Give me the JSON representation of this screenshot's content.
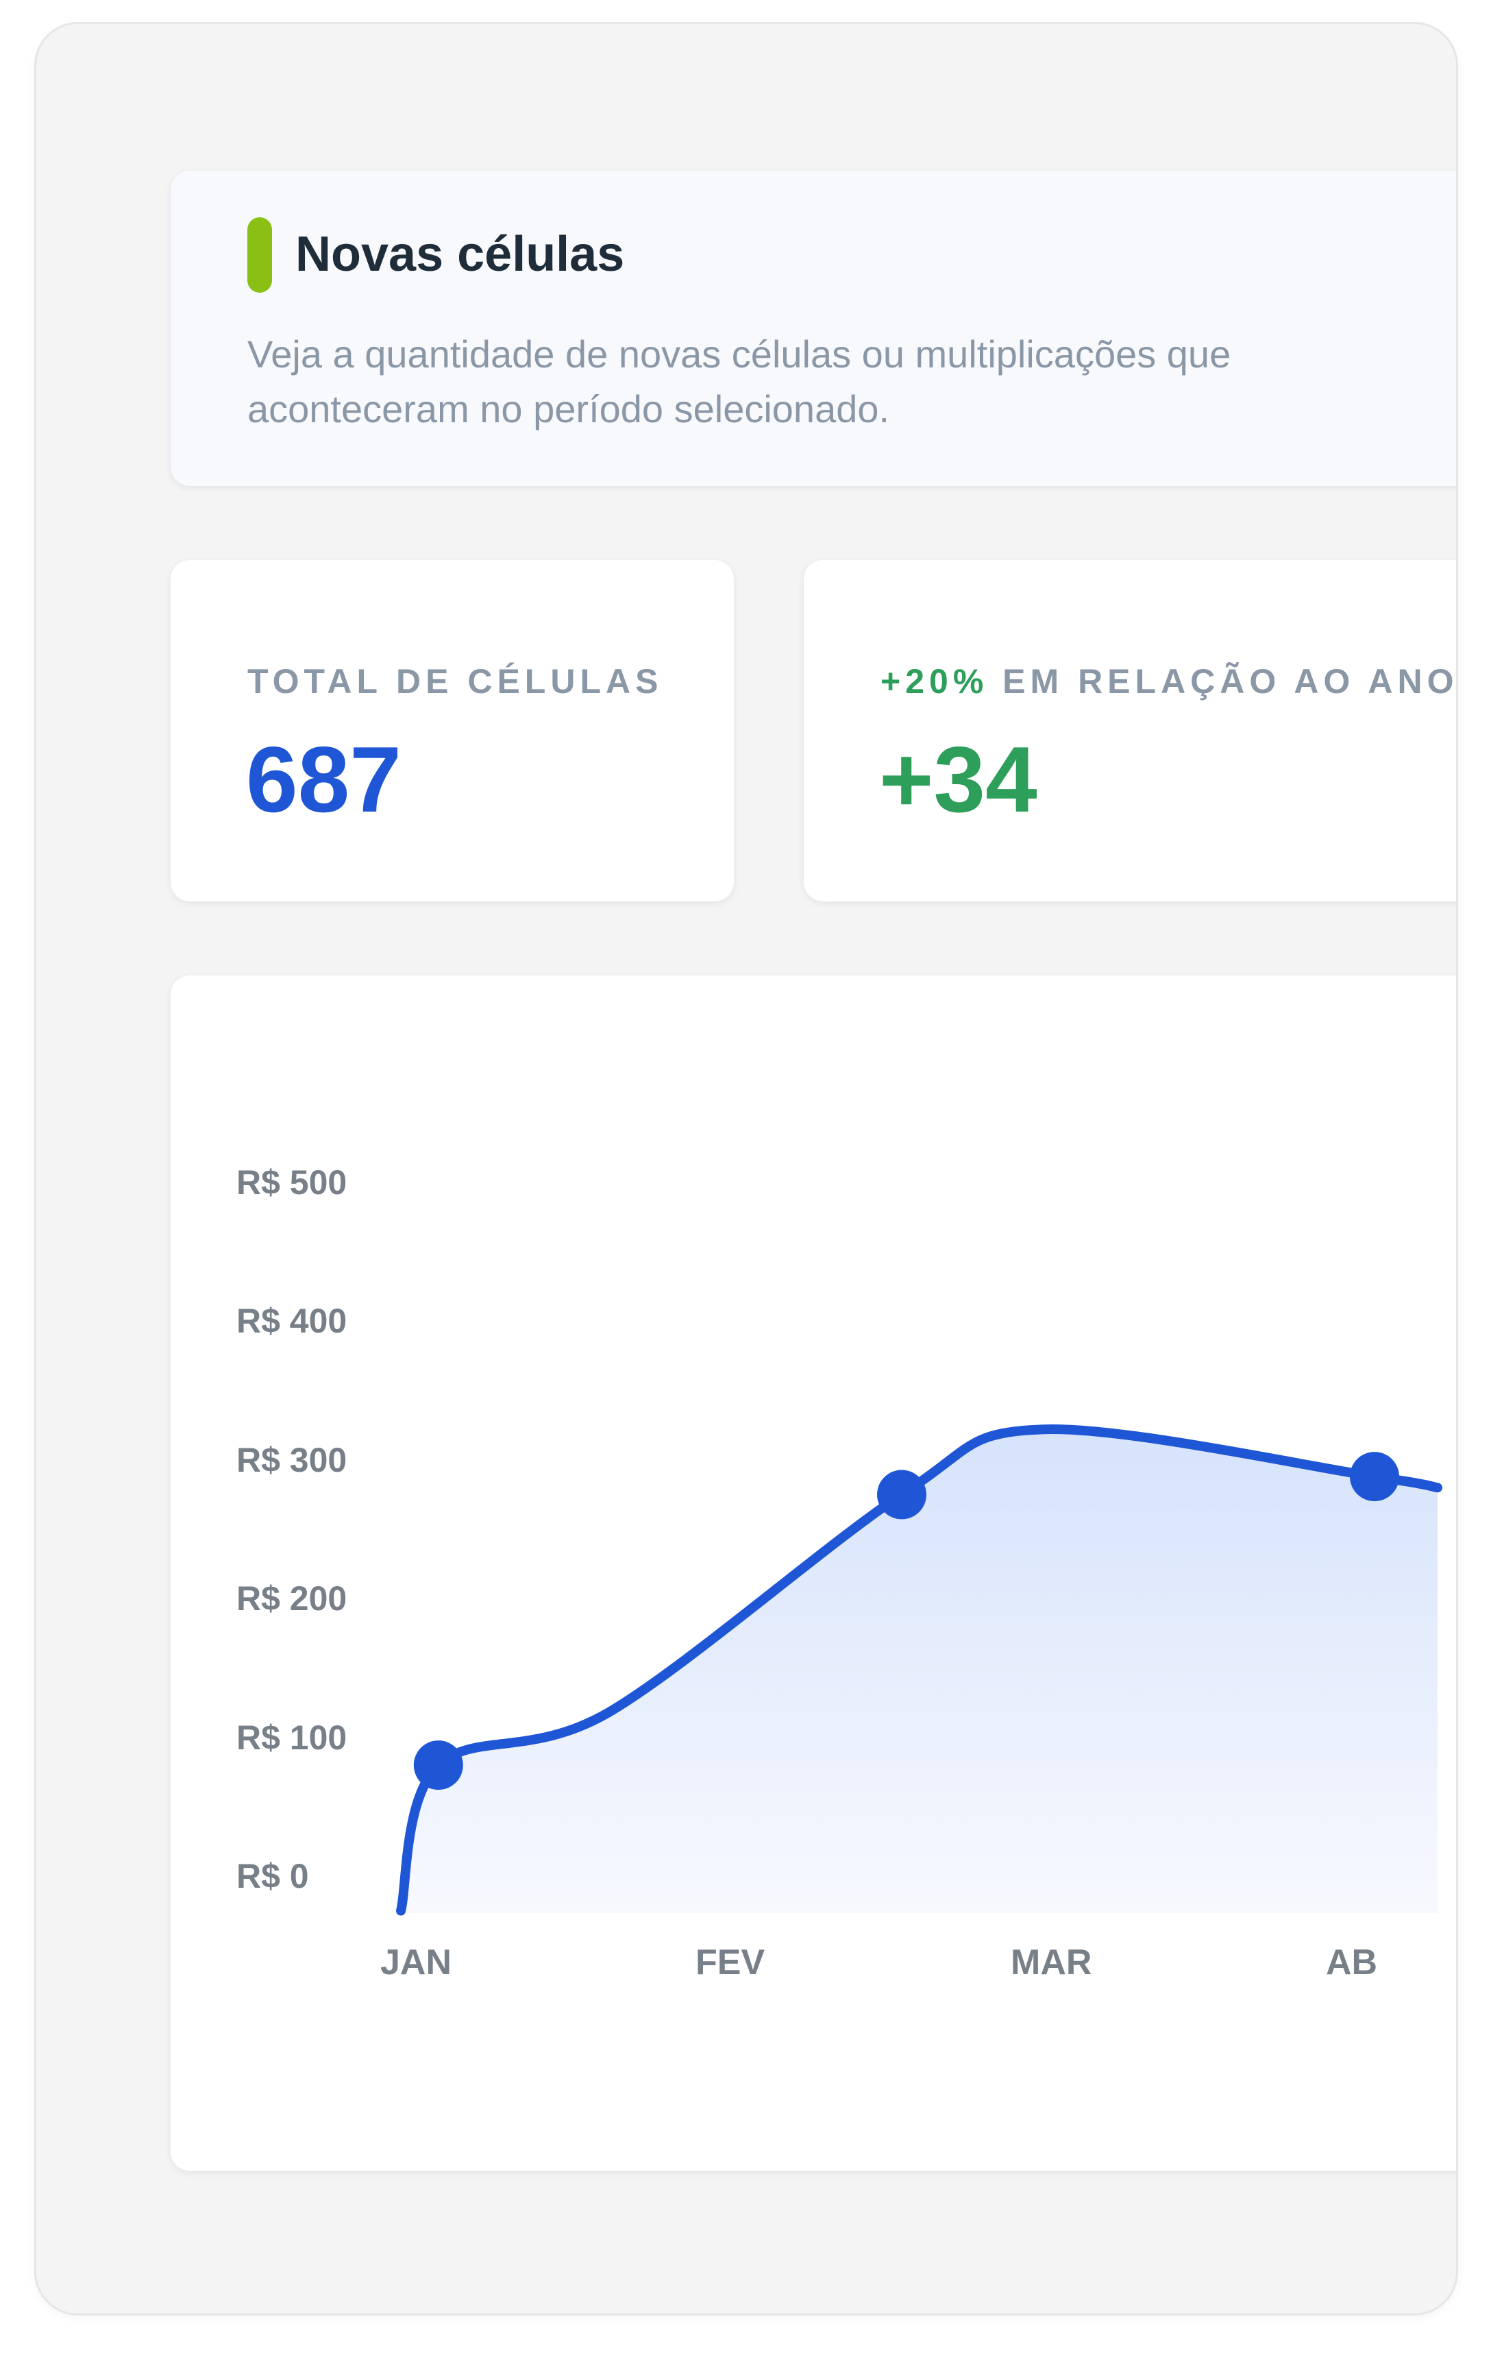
{
  "header": {
    "title": "Novas células",
    "description": "Veja a quantidade de novas células ou multiplicações que aconteceram no período selecionado.",
    "accent_color": "#8abf14"
  },
  "stats": {
    "total": {
      "label": "TOTAL DE CÉLULAS",
      "value": "687",
      "color": "#1f56d6"
    },
    "growth": {
      "label_pct": "+20%",
      "label_rest": " EM RELAÇÃO AO ANO",
      "value": "+34",
      "color": "#2e9e5b"
    }
  },
  "chart_data": {
    "type": "area",
    "categories": [
      "JAN",
      "FEV",
      "MAR",
      "AB"
    ],
    "yticks": [
      "R$ 500",
      "R$ 400",
      "R$ 300",
      "R$ 200",
      "R$ 100",
      "R$ 0"
    ],
    "ylim": [
      0,
      500
    ],
    "points": [
      {
        "x": 0.08,
        "y": 80
      },
      {
        "x": 1.55,
        "y": 275
      },
      {
        "x": 3.05,
        "y": 288
      }
    ],
    "line_color": "#1f56d6",
    "legend": "none",
    "grid": false
  }
}
